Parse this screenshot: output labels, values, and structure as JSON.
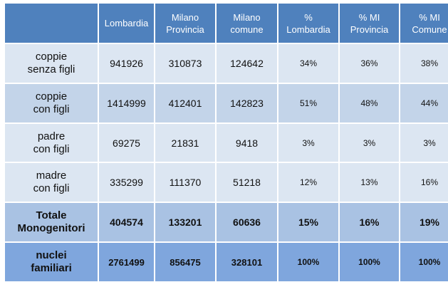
{
  "table": {
    "headers": [
      "",
      "Lombardia",
      "Milano\nProvincia",
      "Milano\ncomune",
      "%\nLombardia",
      "% MI\nProvincia",
      "% MI\nComune"
    ],
    "rows": [
      {
        "label": "coppie\nsenza figli",
        "values": [
          "941926",
          "310873",
          "124642",
          "34%",
          "36%",
          "38%"
        ]
      },
      {
        "label": "coppie\ncon figli",
        "values": [
          "1414999",
          "412401",
          "142823",
          "51%",
          "48%",
          "44%"
        ]
      },
      {
        "label": "padre\ncon figli",
        "values": [
          "69275",
          "21831",
          "9418",
          "3%",
          "3%",
          "3%"
        ]
      },
      {
        "label": "madre\ncon figli",
        "values": [
          "335299",
          "111370",
          "51218",
          "12%",
          "13%",
          "16%"
        ]
      },
      {
        "label": "Totale\nMonogenitori",
        "values": [
          "404574",
          "133201",
          "60636",
          "15%",
          "16%",
          "19%"
        ]
      },
      {
        "label": "nuclei\nfamiliari",
        "values": [
          "2761499",
          "856475",
          "328101",
          "100%",
          "100%",
          "100%"
        ]
      }
    ]
  },
  "colors": {
    "header_bg": "#4f81bd",
    "row_light": "#dce6f2",
    "row_mid": "#c3d4e9",
    "row_total": "#a9c2e3",
    "row_nuclei": "#7fa6dd"
  }
}
